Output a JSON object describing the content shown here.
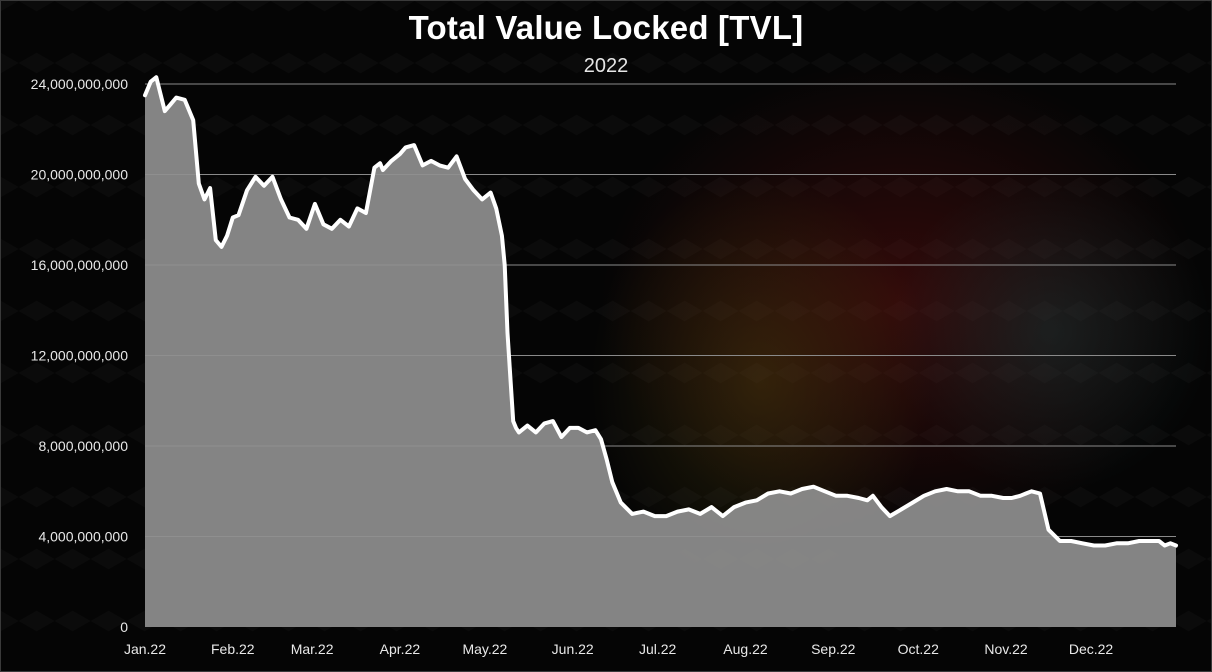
{
  "chart_data": {
    "type": "area",
    "title": "Total Value Locked [TVL]",
    "subtitle": "2022",
    "xlabel": "",
    "ylabel": "",
    "ylim": [
      0,
      24000000000
    ],
    "yticks": [
      0,
      4000000000,
      8000000000,
      12000000000,
      16000000000,
      20000000000,
      24000000000
    ],
    "ytick_labels": [
      "0",
      "4,000,000,000",
      "8,000,000,000",
      "12,000,000,000",
      "16,000,000,000",
      "20,000,000,000",
      "24,000,000,000"
    ],
    "xtick_labels": [
      "Jan.22",
      "Feb.22",
      "Mar.22",
      "Apr.22",
      "May.22",
      "Jun.22",
      "Jul.22",
      "Aug.22",
      "Sep.22",
      "Oct.22",
      "Nov.22",
      "Dec.22"
    ],
    "xtick_dates": [
      "2022-01-01",
      "2022-02-01",
      "2022-03-01",
      "2022-04-01",
      "2022-05-01",
      "2022-06-01",
      "2022-07-01",
      "2022-08-01",
      "2022-09-01",
      "2022-10-01",
      "2022-11-01",
      "2022-12-01"
    ],
    "grid": true,
    "legend": "none",
    "colors": {
      "fill": "#8f8f8f",
      "line": "#ffffff",
      "grid": "#8a8a8a",
      "background": "#050505"
    },
    "series": [
      {
        "x": [
          "2022-01-01",
          "2022-01-03",
          "2022-01-05",
          "2022-01-08",
          "2022-01-10",
          "2022-01-12",
          "2022-01-15",
          "2022-01-18",
          "2022-01-20",
          "2022-01-22",
          "2022-01-24",
          "2022-01-26",
          "2022-01-28",
          "2022-01-30",
          "2022-02-01",
          "2022-02-03",
          "2022-02-06",
          "2022-02-09",
          "2022-02-12",
          "2022-02-15",
          "2022-02-18",
          "2022-02-21",
          "2022-02-24",
          "2022-02-27",
          "2022-03-02",
          "2022-03-05",
          "2022-03-08",
          "2022-03-11",
          "2022-03-14",
          "2022-03-17",
          "2022-03-20",
          "2022-03-23",
          "2022-03-25",
          "2022-03-26",
          "2022-03-29",
          "2022-04-01",
          "2022-04-03",
          "2022-04-06",
          "2022-04-09",
          "2022-04-12",
          "2022-04-15",
          "2022-04-18",
          "2022-04-21",
          "2022-04-24",
          "2022-04-27",
          "2022-04-30",
          "2022-05-03",
          "2022-05-05",
          "2022-05-07",
          "2022-05-08",
          "2022-05-09",
          "2022-05-10",
          "2022-05-11",
          "2022-05-12",
          "2022-05-13",
          "2022-05-16",
          "2022-05-19",
          "2022-05-22",
          "2022-05-25",
          "2022-05-28",
          "2022-05-31",
          "2022-06-03",
          "2022-06-06",
          "2022-06-09",
          "2022-06-11",
          "2022-06-13",
          "2022-06-15",
          "2022-06-18",
          "2022-06-22",
          "2022-06-26",
          "2022-06-30",
          "2022-07-04",
          "2022-07-08",
          "2022-07-12",
          "2022-07-16",
          "2022-07-20",
          "2022-07-24",
          "2022-07-28",
          "2022-08-01",
          "2022-08-05",
          "2022-08-09",
          "2022-08-13",
          "2022-08-17",
          "2022-08-21",
          "2022-08-25",
          "2022-08-29",
          "2022-09-02",
          "2022-09-06",
          "2022-09-10",
          "2022-09-13",
          "2022-09-15",
          "2022-09-18",
          "2022-09-21",
          "2022-09-25",
          "2022-09-29",
          "2022-10-03",
          "2022-10-07",
          "2022-10-11",
          "2022-10-15",
          "2022-10-19",
          "2022-10-23",
          "2022-10-27",
          "2022-10-31",
          "2022-11-03",
          "2022-11-06",
          "2022-11-08",
          "2022-11-10",
          "2022-11-13",
          "2022-11-16",
          "2022-11-20",
          "2022-11-24",
          "2022-11-28",
          "2022-12-02",
          "2022-12-06",
          "2022-12-10",
          "2022-12-14",
          "2022-12-18",
          "2022-12-22",
          "2022-12-25",
          "2022-12-27",
          "2022-12-29",
          "2022-12-31"
        ],
        "y": [
          23500000000,
          24100000000,
          24300000000,
          22800000000,
          23100000000,
          23400000000,
          23300000000,
          22400000000,
          19600000000,
          18900000000,
          19400000000,
          17100000000,
          16800000000,
          17300000000,
          18100000000,
          18200000000,
          19300000000,
          19900000000,
          19500000000,
          19900000000,
          18900000000,
          18100000000,
          18000000000,
          17600000000,
          18700000000,
          17800000000,
          17600000000,
          18000000000,
          17700000000,
          18500000000,
          18300000000,
          20300000000,
          20500000000,
          20200000000,
          20600000000,
          20900000000,
          21200000000,
          21300000000,
          20400000000,
          20600000000,
          20400000000,
          20300000000,
          20800000000,
          19800000000,
          19300000000,
          18900000000,
          19200000000,
          18500000000,
          17300000000,
          16000000000,
          13000000000,
          11000000000,
          9100000000,
          8800000000,
          8600000000,
          8900000000,
          8600000000,
          9000000000,
          9100000000,
          8400000000,
          8800000000,
          8800000000,
          8600000000,
          8700000000,
          8300000000,
          7400000000,
          6400000000,
          5500000000,
          5000000000,
          5100000000,
          4900000000,
          4900000000,
          5100000000,
          5200000000,
          5000000000,
          5300000000,
          4900000000,
          5300000000,
          5500000000,
          5600000000,
          5900000000,
          6000000000,
          5900000000,
          6100000000,
          6200000000,
          6000000000,
          5800000000,
          5800000000,
          5700000000,
          5600000000,
          5800000000,
          5300000000,
          4900000000,
          5200000000,
          5500000000,
          5800000000,
          6000000000,
          6100000000,
          6000000000,
          6000000000,
          5800000000,
          5800000000,
          5700000000,
          5700000000,
          5800000000,
          5900000000,
          6000000000,
          5900000000,
          4300000000,
          3800000000,
          3800000000,
          3700000000,
          3600000000,
          3600000000,
          3700000000,
          3700000000,
          3800000000,
          3800000000,
          3800000000,
          3600000000,
          3700000000,
          3600000000
        ]
      }
    ]
  }
}
